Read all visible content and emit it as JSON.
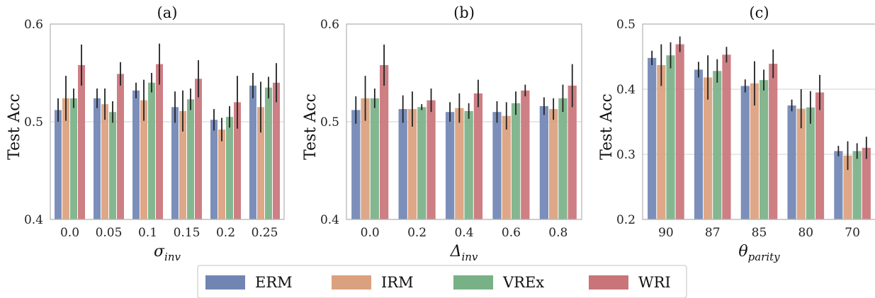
{
  "chart_data": [
    {
      "type": "bar",
      "title": "(a)",
      "xlabel_base": "σ",
      "xlabel_sub": "inv",
      "ylabel": "Test Acc",
      "ylim": [
        0.4,
        0.6
      ],
      "yticks": [
        "0.4",
        "0.5",
        "0.6"
      ],
      "ytick_values": [
        0.4,
        0.5,
        0.6
      ],
      "categories": [
        "0.0",
        "0.05",
        "0.1",
        "0.15",
        "0.2",
        "0.25"
      ],
      "series": [
        {
          "name": "ERM",
          "values": [
            0.512,
            0.524,
            0.532,
            0.515,
            0.502,
            0.537
          ],
          "err": [
            0.012,
            0.01,
            0.008,
            0.016,
            0.011,
            0.013
          ]
        },
        {
          "name": "IRM",
          "values": [
            0.524,
            0.518,
            0.522,
            0.511,
            0.492,
            0.515
          ],
          "err": [
            0.023,
            0.016,
            0.021,
            0.021,
            0.012,
            0.026
          ]
        },
        {
          "name": "VREx",
          "values": [
            0.524,
            0.51,
            0.54,
            0.523,
            0.505,
            0.535
          ],
          "err": [
            0.01,
            0.011,
            0.01,
            0.011,
            0.011,
            0.011
          ]
        },
        {
          "name": "WRI",
          "values": [
            0.558,
            0.549,
            0.559,
            0.544,
            0.52,
            0.54
          ],
          "err": [
            0.021,
            0.012,
            0.021,
            0.019,
            0.027,
            0.02
          ]
        }
      ]
    },
    {
      "type": "bar",
      "title": "(b)",
      "xlabel_base": "Δ",
      "xlabel_sub": "inv",
      "ylabel": "Test Acc",
      "ylim": [
        0.4,
        0.6
      ],
      "yticks": [
        "0.4",
        "0.5",
        "0.6"
      ],
      "ytick_values": [
        0.4,
        0.5,
        0.6
      ],
      "categories": [
        "0.0",
        "0.2",
        "0.4",
        "0.6",
        "0.8"
      ],
      "series": [
        {
          "name": "ERM",
          "values": [
            0.512,
            0.513,
            0.51,
            0.51,
            0.516
          ],
          "err": [
            0.014,
            0.014,
            0.01,
            0.011,
            0.009
          ]
        },
        {
          "name": "IRM",
          "values": [
            0.524,
            0.513,
            0.514,
            0.506,
            0.513
          ],
          "err": [
            0.023,
            0.018,
            0.015,
            0.014,
            0.011
          ]
        },
        {
          "name": "VREx",
          "values": [
            0.524,
            0.515,
            0.511,
            0.519,
            0.524
          ],
          "err": [
            0.01,
            0.003,
            0.008,
            0.012,
            0.014
          ]
        },
        {
          "name": "WRI",
          "values": [
            0.558,
            0.522,
            0.529,
            0.532,
            0.537
          ],
          "err": [
            0.021,
            0.012,
            0.014,
            0.006,
            0.022
          ]
        }
      ]
    },
    {
      "type": "bar",
      "title": "(c)",
      "xlabel_base": "θ",
      "xlabel_sub": "parity",
      "ylabel": "Test Acc",
      "ylim": [
        0.2,
        0.5
      ],
      "yticks": [
        "0.2",
        "0.3",
        "0.4",
        "0.5"
      ],
      "ytick_values": [
        0.2,
        0.3,
        0.4,
        0.5
      ],
      "categories": [
        "90",
        "87",
        "85",
        "80",
        "70"
      ],
      "series": [
        {
          "name": "ERM",
          "values": [
            0.448,
            0.43,
            0.405,
            0.375,
            0.305
          ],
          "err": [
            0.011,
            0.012,
            0.01,
            0.009,
            0.008
          ]
        },
        {
          "name": "IRM",
          "values": [
            0.437,
            0.418,
            0.409,
            0.37,
            0.298
          ],
          "err": [
            0.032,
            0.034,
            0.034,
            0.03,
            0.022
          ]
        },
        {
          "name": "VREx",
          "values": [
            0.452,
            0.428,
            0.414,
            0.372,
            0.305
          ],
          "err": [
            0.02,
            0.018,
            0.016,
            0.025,
            0.012
          ]
        },
        {
          "name": "WRI",
          "values": [
            0.469,
            0.453,
            0.439,
            0.395,
            0.31
          ],
          "err": [
            0.012,
            0.012,
            0.022,
            0.027,
            0.017
          ]
        }
      ]
    }
  ],
  "legend": {
    "placement": "bottom-center",
    "items": [
      {
        "label": "ERM",
        "color": "#7085b4"
      },
      {
        "label": "IRM",
        "color": "#dba07d"
      },
      {
        "label": "VREx",
        "color": "#79b187"
      },
      {
        "label": "WRI",
        "color": "#c97479"
      }
    ]
  },
  "colors": {
    "ERM": "#7085b4",
    "IRM": "#dba07d",
    "VREx": "#79b187",
    "WRI": "#c97479",
    "grid": "#dadada",
    "frame": "#b8b8b8",
    "errorbar": "#222222"
  },
  "grid": "horizontal"
}
